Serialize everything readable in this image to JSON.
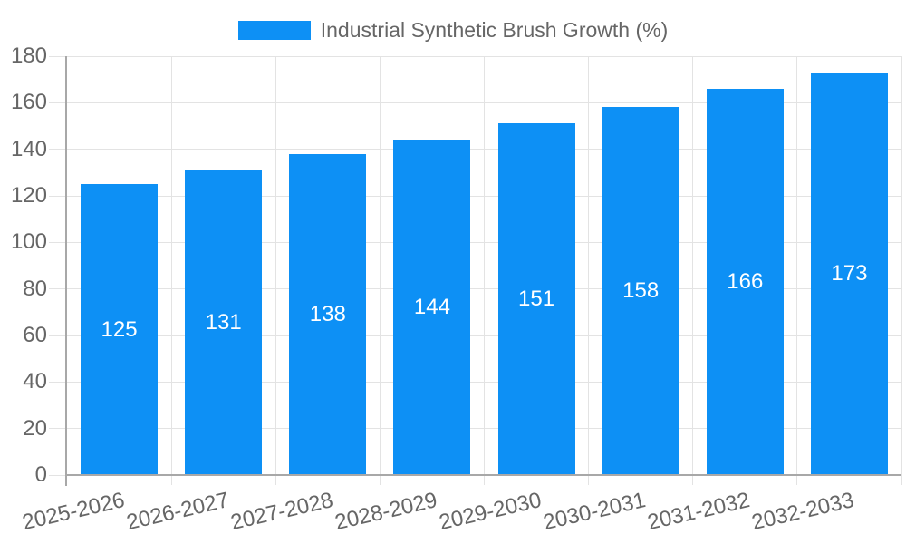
{
  "chart_data": {
    "type": "bar",
    "title": "",
    "legend_label": "Industrial Synthetic Brush Growth (%)",
    "legend_position": "top",
    "categories": [
      "2025-2026",
      "2026-2027",
      "2027-2028",
      "2028-2029",
      "2029-2030",
      "2030-2031",
      "2031-2032",
      "2032-2033"
    ],
    "values": [
      125,
      131,
      138,
      144,
      151,
      158,
      166,
      173
    ],
    "bar_value_labels": [
      "125",
      "131",
      "138",
      "144",
      "151",
      "158",
      "166",
      "173"
    ],
    "xlabel": "",
    "ylabel": "",
    "ylim": [
      0,
      180
    ],
    "ytick_step": 20,
    "yticks": [
      "0",
      "20",
      "40",
      "60",
      "80",
      "100",
      "120",
      "140",
      "160",
      "180"
    ],
    "grid": true,
    "colors": {
      "bar": "#0d90f5",
      "bar_value_label": "#ffffff",
      "grid_line": "#e3e3e3",
      "axis_line": "#a8a8a8",
      "tick_label": "#666666",
      "legend_text": "#666666",
      "background": "#ffffff"
    }
  }
}
